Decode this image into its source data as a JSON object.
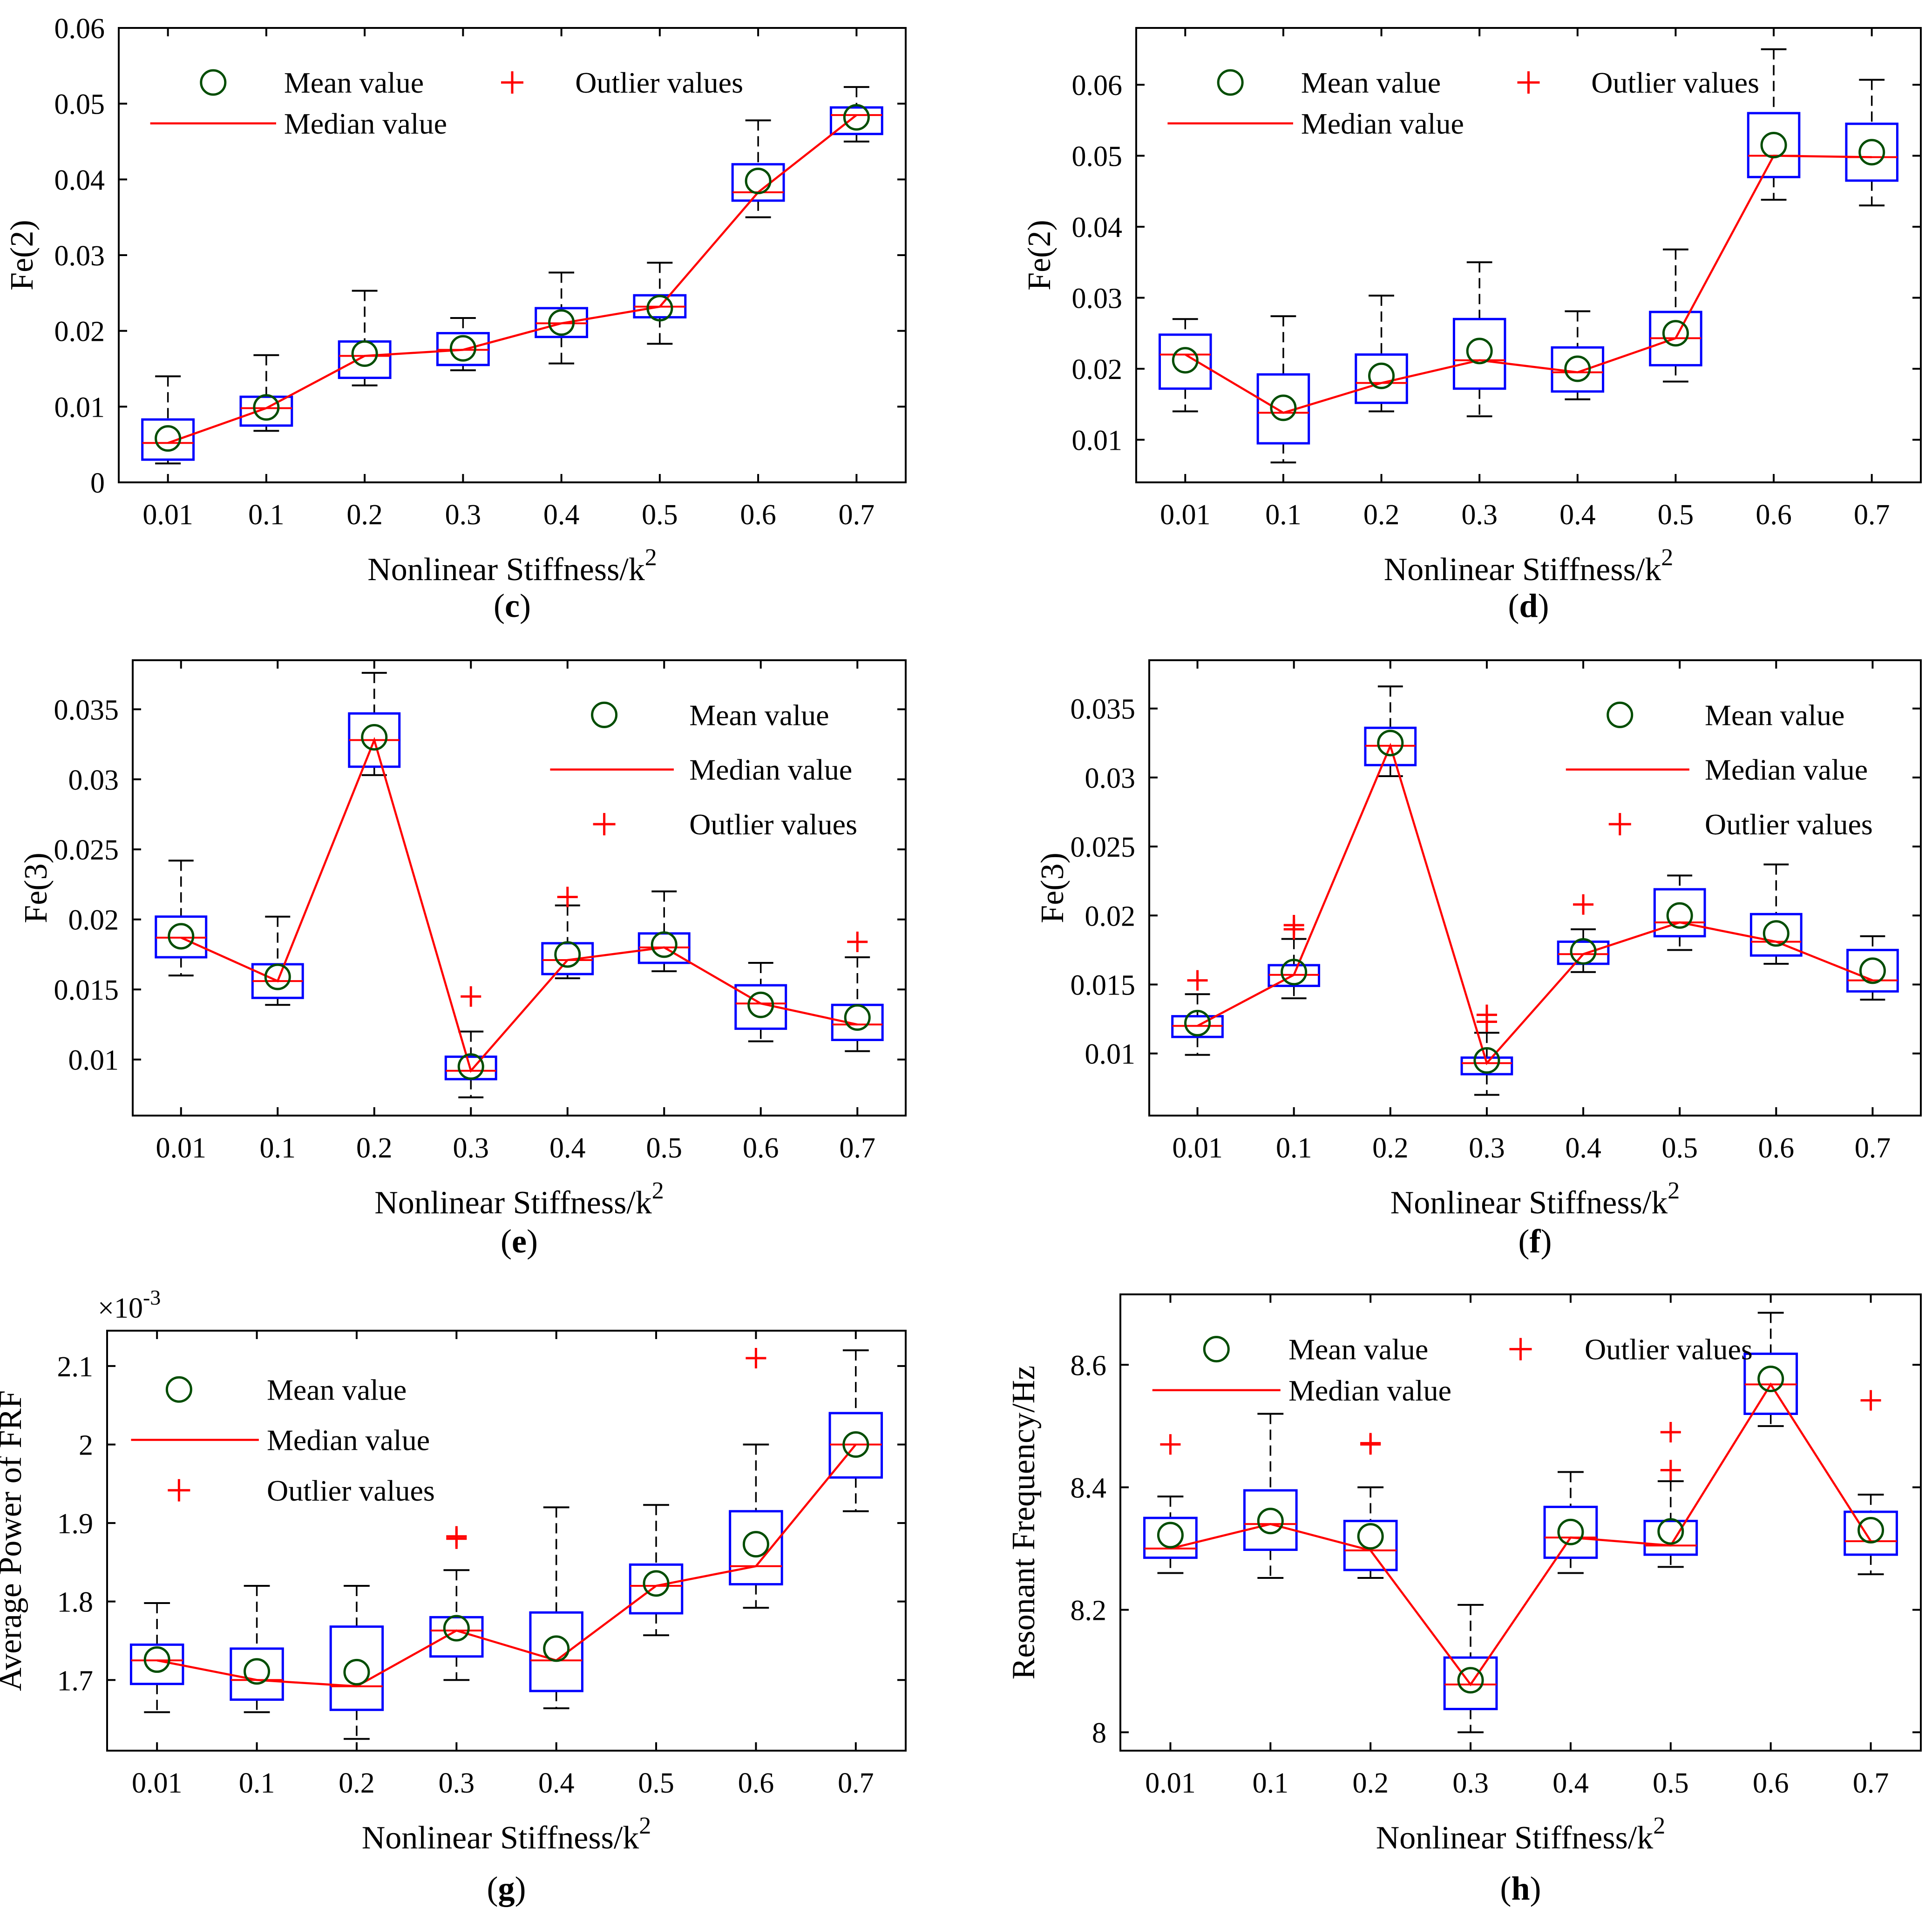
{
  "chart_data": [
    {
      "panel": "(c)",
      "type": "box",
      "ylabel": "Fe(2)",
      "xlabel": "Nonlinear Stiffness/k",
      "xlabel_superscript": "2",
      "categories": [
        "0.01",
        "0.1",
        "0.2",
        "0.3",
        "0.4",
        "0.5",
        "0.6",
        "0.7"
      ],
      "ylim": [
        0,
        0.06
      ],
      "yticks": [
        0,
        0.01,
        0.02,
        0.03,
        0.04,
        0.05,
        0.06
      ],
      "ytick_labels": [
        "0",
        "0.01",
        "0.02",
        "0.03",
        "0.04",
        "0.05",
        "0.06"
      ],
      "exponent_label": "",
      "legend": {
        "mean": "Mean value",
        "median": "Median value",
        "outlier": "Outlier values",
        "layout": "two-column"
      },
      "boxes": [
        {
          "wlo": 0.0025,
          "q1": 0.003,
          "median": 0.0052,
          "q3": 0.0083,
          "whi": 0.014,
          "mean": 0.0058,
          "outliers": []
        },
        {
          "wlo": 0.0068,
          "q1": 0.0075,
          "median": 0.0098,
          "q3": 0.0113,
          "whi": 0.0168,
          "mean": 0.0099,
          "outliers": []
        },
        {
          "wlo": 0.0128,
          "q1": 0.0138,
          "median": 0.0167,
          "q3": 0.0186,
          "whi": 0.0253,
          "mean": 0.017,
          "outliers": []
        },
        {
          "wlo": 0.0148,
          "q1": 0.0155,
          "median": 0.0175,
          "q3": 0.0197,
          "whi": 0.0217,
          "mean": 0.0177,
          "outliers": []
        },
        {
          "wlo": 0.0157,
          "q1": 0.0192,
          "median": 0.021,
          "q3": 0.023,
          "whi": 0.0277,
          "mean": 0.0211,
          "outliers": []
        },
        {
          "wlo": 0.0183,
          "q1": 0.0218,
          "median": 0.0232,
          "q3": 0.0247,
          "whi": 0.029,
          "mean": 0.023,
          "outliers": []
        },
        {
          "wlo": 0.035,
          "q1": 0.0372,
          "median": 0.0383,
          "q3": 0.042,
          "whi": 0.0478,
          "mean": 0.0398,
          "outliers": []
        },
        {
          "wlo": 0.045,
          "q1": 0.046,
          "median": 0.0485,
          "q3": 0.0495,
          "whi": 0.0522,
          "mean": 0.0482,
          "outliers": []
        }
      ]
    },
    {
      "panel": "(d)",
      "type": "box",
      "ylabel": "Fe(2)",
      "xlabel": "Nonlinear Stiffness/k",
      "xlabel_superscript": "2",
      "categories": [
        "0.01",
        "0.1",
        "0.2",
        "0.3",
        "0.4",
        "0.5",
        "0.6",
        "0.7"
      ],
      "ylim": [
        0.004,
        0.068
      ],
      "yticks": [
        0.01,
        0.02,
        0.03,
        0.04,
        0.05,
        0.06
      ],
      "ytick_labels": [
        "0.01",
        "0.02",
        "0.03",
        "0.04",
        "0.05",
        "0.06"
      ],
      "exponent_label": "",
      "legend": {
        "mean": "Mean value",
        "median": "Median value",
        "outlier": "Outlier values",
        "layout": "two-column"
      },
      "boxes": [
        {
          "wlo": 0.014,
          "q1": 0.0172,
          "median": 0.022,
          "q3": 0.0248,
          "whi": 0.027,
          "mean": 0.0212,
          "outliers": []
        },
        {
          "wlo": 0.0068,
          "q1": 0.0095,
          "median": 0.0138,
          "q3": 0.0192,
          "whi": 0.0274,
          "mean": 0.0145,
          "outliers": []
        },
        {
          "wlo": 0.014,
          "q1": 0.0152,
          "median": 0.018,
          "q3": 0.022,
          "whi": 0.0303,
          "mean": 0.019,
          "outliers": []
        },
        {
          "wlo": 0.0133,
          "q1": 0.0172,
          "median": 0.0212,
          "q3": 0.027,
          "whi": 0.035,
          "mean": 0.0225,
          "outliers": []
        },
        {
          "wlo": 0.0157,
          "q1": 0.0168,
          "median": 0.0195,
          "q3": 0.023,
          "whi": 0.0281,
          "mean": 0.02,
          "outliers": []
        },
        {
          "wlo": 0.0182,
          "q1": 0.0205,
          "median": 0.0243,
          "q3": 0.028,
          "whi": 0.0368,
          "mean": 0.025,
          "outliers": []
        },
        {
          "wlo": 0.0438,
          "q1": 0.047,
          "median": 0.05,
          "q3": 0.056,
          "whi": 0.065,
          "mean": 0.0515,
          "outliers": []
        },
        {
          "wlo": 0.043,
          "q1": 0.0465,
          "median": 0.0498,
          "q3": 0.0545,
          "whi": 0.0607,
          "mean": 0.0505,
          "outliers": []
        }
      ]
    },
    {
      "panel": "(e)",
      "type": "box",
      "ylabel": "Fe(3)",
      "xlabel": "Nonlinear Stiffness/k",
      "xlabel_superscript": "2",
      "categories": [
        "0.01",
        "0.1",
        "0.2",
        "0.3",
        "0.4",
        "0.5",
        "0.6",
        "0.7"
      ],
      "ylim": [
        0.006,
        0.0385
      ],
      "yticks": [
        0.01,
        0.015,
        0.02,
        0.025,
        0.03,
        0.035
      ],
      "ytick_labels": [
        "0.01",
        "0.015",
        "0.02",
        "0.025",
        "0.03",
        "0.035"
      ],
      "exponent_label": "",
      "legend": {
        "mean": "Mean value",
        "median": "Median value",
        "outlier": "Outlier values",
        "layout": "stacked-right"
      },
      "boxes": [
        {
          "wlo": 0.016,
          "q1": 0.0173,
          "median": 0.0187,
          "q3": 0.0202,
          "whi": 0.0242,
          "mean": 0.0188,
          "outliers": []
        },
        {
          "wlo": 0.0139,
          "q1": 0.0144,
          "median": 0.0156,
          "q3": 0.0168,
          "whi": 0.0202,
          "mean": 0.0159,
          "outliers": []
        },
        {
          "wlo": 0.0303,
          "q1": 0.0309,
          "median": 0.0328,
          "q3": 0.0347,
          "whi": 0.0376,
          "mean": 0.033,
          "outliers": []
        },
        {
          "wlo": 0.0073,
          "q1": 0.0086,
          "median": 0.0092,
          "q3": 0.0102,
          "whi": 0.012,
          "mean": 0.0095,
          "outliers": [
            0.0145
          ]
        },
        {
          "wlo": 0.0158,
          "q1": 0.0161,
          "median": 0.0171,
          "q3": 0.0183,
          "whi": 0.021,
          "mean": 0.0175,
          "outliers": [
            0.0216
          ]
        },
        {
          "wlo": 0.0163,
          "q1": 0.0169,
          "median": 0.018,
          "q3": 0.019,
          "whi": 0.022,
          "mean": 0.0182,
          "outliers": []
        },
        {
          "wlo": 0.0113,
          "q1": 0.0122,
          "median": 0.014,
          "q3": 0.0153,
          "whi": 0.0169,
          "mean": 0.0139,
          "outliers": []
        },
        {
          "wlo": 0.0106,
          "q1": 0.0114,
          "median": 0.0125,
          "q3": 0.0139,
          "whi": 0.0173,
          "mean": 0.013,
          "outliers": [
            0.0184
          ]
        }
      ]
    },
    {
      "panel": "(f)",
      "type": "box",
      "ylabel": "Fe(3)",
      "xlabel": "Nonlinear Stiffness/k",
      "xlabel_superscript": "2",
      "categories": [
        "0.01",
        "0.1",
        "0.2",
        "0.3",
        "0.4",
        "0.5",
        "0.6",
        "0.7"
      ],
      "ylim": [
        0.0055,
        0.0385
      ],
      "yticks": [
        0.01,
        0.015,
        0.02,
        0.025,
        0.03,
        0.035
      ],
      "ytick_labels": [
        "0.01",
        "0.015",
        "0.02",
        "0.025",
        "0.03",
        "0.035"
      ],
      "exponent_label": "",
      "legend": {
        "mean": "Mean value",
        "median": "Median value",
        "outlier": "Outlier values",
        "layout": "stacked-right"
      },
      "boxes": [
        {
          "wlo": 0.0099,
          "q1": 0.0112,
          "median": 0.012,
          "q3": 0.0127,
          "whi": 0.0143,
          "mean": 0.0122,
          "outliers": [
            0.0153
          ]
        },
        {
          "wlo": 0.014,
          "q1": 0.0149,
          "median": 0.0157,
          "q3": 0.0164,
          "whi": 0.0183,
          "mean": 0.0159,
          "outliers": [
            0.019,
            0.0193
          ]
        },
        {
          "wlo": 0.0301,
          "q1": 0.0309,
          "median": 0.0323,
          "q3": 0.0336,
          "whi": 0.0366,
          "mean": 0.0325,
          "outliers": []
        },
        {
          "wlo": 0.007,
          "q1": 0.0085,
          "median": 0.0093,
          "q3": 0.0097,
          "whi": 0.0115,
          "mean": 0.0095,
          "outliers": [
            0.0123,
            0.0128
          ]
        },
        {
          "wlo": 0.0159,
          "q1": 0.0165,
          "median": 0.0172,
          "q3": 0.0181,
          "whi": 0.019,
          "mean": 0.0174,
          "outliers": [
            0.0208
          ]
        },
        {
          "wlo": 0.0175,
          "q1": 0.0185,
          "median": 0.0195,
          "q3": 0.0219,
          "whi": 0.0229,
          "mean": 0.02,
          "outliers": []
        },
        {
          "wlo": 0.0165,
          "q1": 0.0171,
          "median": 0.0181,
          "q3": 0.0201,
          "whi": 0.0237,
          "mean": 0.0187,
          "outliers": []
        },
        {
          "wlo": 0.0139,
          "q1": 0.0145,
          "median": 0.0153,
          "q3": 0.0175,
          "whi": 0.0185,
          "mean": 0.016,
          "outliers": []
        }
      ]
    },
    {
      "panel": "(g)",
      "type": "box",
      "ylabel": "Average Power of FRF",
      "xlabel": "Nonlinear Stiffness/k",
      "xlabel_superscript": "2",
      "categories": [
        "0.01",
        "0.1",
        "0.2",
        "0.3",
        "0.4",
        "0.5",
        "0.6",
        "0.7"
      ],
      "ylim": [
        1.61,
        2.145
      ],
      "yticks": [
        1.7,
        1.8,
        1.9,
        2.0,
        2.1
      ],
      "ytick_labels": [
        "1.7",
        "1.8",
        "1.9",
        "2",
        "2.1"
      ],
      "exponent_label": "×10",
      "exponent_superscript": "-3",
      "legend": {
        "mean": "Mean value",
        "median": "Median value",
        "outlier": "Outlier values",
        "layout": "stacked-left"
      },
      "boxes": [
        {
          "wlo": 1.659,
          "q1": 1.695,
          "median": 1.725,
          "q3": 1.745,
          "whi": 1.798,
          "mean": 1.726,
          "outliers": []
        },
        {
          "wlo": 1.659,
          "q1": 1.675,
          "median": 1.7,
          "q3": 1.74,
          "whi": 1.82,
          "mean": 1.711,
          "outliers": []
        },
        {
          "wlo": 1.625,
          "q1": 1.662,
          "median": 1.692,
          "q3": 1.768,
          "whi": 1.82,
          "mean": 1.71,
          "outliers": []
        },
        {
          "wlo": 1.7,
          "q1": 1.73,
          "median": 1.763,
          "q3": 1.78,
          "whi": 1.84,
          "mean": 1.766,
          "outliers": [
            1.88,
            1.883
          ]
        },
        {
          "wlo": 1.664,
          "q1": 1.686,
          "median": 1.725,
          "q3": 1.786,
          "whi": 1.92,
          "mean": 1.74,
          "outliers": []
        },
        {
          "wlo": 1.757,
          "q1": 1.785,
          "median": 1.82,
          "q3": 1.847,
          "whi": 1.923,
          "mean": 1.823,
          "outliers": []
        },
        {
          "wlo": 1.792,
          "q1": 1.822,
          "median": 1.845,
          "q3": 1.915,
          "whi": 2.0,
          "mean": 1.873,
          "outliers": [
            2.11
          ]
        },
        {
          "wlo": 1.915,
          "q1": 1.958,
          "median": 2.0,
          "q3": 2.04,
          "whi": 2.12,
          "mean": 2.0,
          "outliers": []
        }
      ]
    },
    {
      "panel": "(h)",
      "type": "box",
      "ylabel": "Resonant Frequency/Hz",
      "xlabel": "Nonlinear Stiffness/k",
      "xlabel_superscript": "2",
      "categories": [
        "0.01",
        "0.1",
        "0.2",
        "0.3",
        "0.4",
        "0.5",
        "0.6",
        "0.7"
      ],
      "ylim": [
        7.97,
        8.715
      ],
      "yticks": [
        8.0,
        8.2,
        8.4,
        8.6
      ],
      "ytick_labels": [
        "8",
        "8.2",
        "8.4",
        "8.6"
      ],
      "exponent_label": "",
      "legend": {
        "mean": "Mean value",
        "median": "Median value",
        "outlier": "Outlier values",
        "layout": "two-column"
      },
      "boxes": [
        {
          "wlo": 8.26,
          "q1": 8.285,
          "median": 8.3,
          "q3": 8.35,
          "whi": 8.385,
          "mean": 8.322,
          "outliers": [
            8.47
          ]
        },
        {
          "wlo": 8.252,
          "q1": 8.298,
          "median": 8.34,
          "q3": 8.395,
          "whi": 8.52,
          "mean": 8.345,
          "outliers": []
        },
        {
          "wlo": 8.252,
          "q1": 8.265,
          "median": 8.297,
          "q3": 8.345,
          "whi": 8.4,
          "mean": 8.32,
          "outliers": [
            8.47,
            8.472
          ]
        },
        {
          "wlo": 8.0,
          "q1": 8.038,
          "median": 8.078,
          "q3": 8.122,
          "whi": 8.208,
          "mean": 8.085,
          "outliers": []
        },
        {
          "wlo": 8.26,
          "q1": 8.285,
          "median": 8.318,
          "q3": 8.368,
          "whi": 8.425,
          "mean": 8.327,
          "outliers": []
        },
        {
          "wlo": 8.27,
          "q1": 8.29,
          "median": 8.305,
          "q3": 8.345,
          "whi": 8.41,
          "mean": 8.328,
          "outliers": [
            8.428,
            8.49
          ]
        },
        {
          "wlo": 8.5,
          "q1": 8.52,
          "median": 8.568,
          "q3": 8.618,
          "whi": 8.685,
          "mean": 8.577,
          "outliers": []
        },
        {
          "wlo": 8.258,
          "q1": 8.29,
          "median": 8.312,
          "q3": 8.36,
          "whi": 8.388,
          "mean": 8.33,
          "outliers": [
            8.542
          ]
        }
      ]
    }
  ]
}
